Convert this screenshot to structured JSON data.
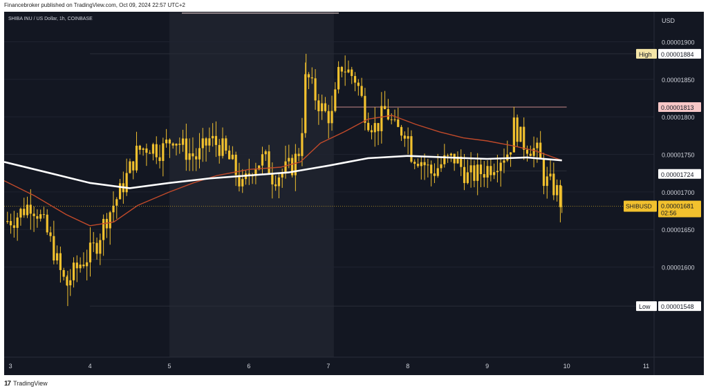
{
  "header": {
    "published": "Financebroker published on TradingView.com, Oct 09, 2024 22:57 UTC+2"
  },
  "footer": {
    "brand": "TradingView"
  },
  "chart_data": {
    "type": "candlestick",
    "title": "SHIBA INU / US Dollar, 1h, COINBASE",
    "symbol": "SHIBUSD",
    "currency": "USD",
    "ylim": [
      1.48e-05,
      1.94e-05
    ],
    "y_ticks": [
      "0.00001900",
      "0.00001850",
      "0.00001800",
      "0.00001750",
      "0.00001700",
      "0.00001650",
      "0.00001600"
    ],
    "x_ticks": [
      "3",
      "4",
      "5",
      "6",
      "7",
      "8",
      "9",
      "10",
      "11"
    ],
    "x_range": [
      2.92,
      11.1
    ],
    "weekend_shade": [
      5.0,
      7.07
    ],
    "labels": {
      "high": {
        "tag": "High",
        "value": "0.00001884",
        "num": 1.884e-05
      },
      "low": {
        "tag": "Low",
        "value": "0.00001548",
        "num": 1.548e-05
      },
      "level_1813": {
        "value": "0.00001813",
        "num": 1.813e-05
      },
      "level_1724": {
        "value": "0.00001724",
        "num": 1.724e-05
      },
      "current": {
        "symbol": "SHIBUSD",
        "value": "0.00001681",
        "num": 1.681e-05,
        "countdown": "02:56"
      }
    },
    "candle_colors": {
      "body": "#f2c12e",
      "wick": "#f2c12e"
    },
    "ma_colors": {
      "ma200": "#ffffff",
      "ma50": "#c24a2a"
    },
    "close_path": [
      [
        2.92,
        1.66e-05
      ],
      [
        3.05,
        1.665e-05
      ],
      [
        3.15,
        1.675e-05
      ],
      [
        3.25,
        1.685e-05
      ],
      [
        3.35,
        1.672e-05
      ],
      [
        3.45,
        1.648e-05
      ],
      [
        3.55,
        1.62e-05
      ],
      [
        3.62,
        1.595e-05
      ],
      [
        3.7,
        1.575e-05
      ],
      [
        3.78,
        1.59e-05
      ],
      [
        3.88,
        1.605e-05
      ],
      [
        3.98,
        1.615e-05
      ],
      [
        4.08,
        1.63e-05
      ],
      [
        4.18,
        1.66e-05
      ],
      [
        4.28,
        1.68e-05
      ],
      [
        4.38,
        1.7e-05
      ],
      [
        4.5,
        1.73e-05
      ],
      [
        4.6,
        1.755e-05
      ],
      [
        4.75,
        1.762e-05
      ],
      [
        4.9,
        1.755e-05
      ],
      [
        5.05,
        1.775e-05
      ],
      [
        5.2,
        1.755e-05
      ],
      [
        5.35,
        1.745e-05
      ],
      [
        5.5,
        1.77e-05
      ],
      [
        5.65,
        1.76e-05
      ],
      [
        5.8,
        1.735e-05
      ],
      [
        5.92,
        1.705e-05
      ],
      [
        6.05,
        1.735e-05
      ],
      [
        6.2,
        1.745e-05
      ],
      [
        6.3,
        1.72e-05
      ],
      [
        6.4,
        1.725e-05
      ],
      [
        6.55,
        1.735e-05
      ],
      [
        6.65,
        1.76e-05
      ],
      [
        6.72,
        1.86e-05
      ],
      [
        6.82,
        1.83e-05
      ],
      [
        6.95,
        1.805e-05
      ],
      [
        7.05,
        1.8e-05
      ],
      [
        7.15,
        1.87e-05
      ],
      [
        7.25,
        1.86e-05
      ],
      [
        7.35,
        1.85e-05
      ],
      [
        7.48,
        1.8e-05
      ],
      [
        7.6,
        1.785e-05
      ],
      [
        7.72,
        1.81e-05
      ],
      [
        7.85,
        1.78e-05
      ],
      [
        7.98,
        1.785e-05
      ],
      [
        8.05,
        1.75e-05
      ],
      [
        8.15,
        1.745e-05
      ],
      [
        8.3,
        1.725e-05
      ],
      [
        8.45,
        1.74e-05
      ],
      [
        8.6,
        1.745e-05
      ],
      [
        8.75,
        1.72e-05
      ],
      [
        8.9,
        1.725e-05
      ],
      [
        9.05,
        1.735e-05
      ],
      [
        9.15,
        1.745e-05
      ],
      [
        9.28,
        1.755e-05
      ],
      [
        9.34,
        1.79e-05
      ],
      [
        9.45,
        1.765e-05
      ],
      [
        9.55,
        1.76e-05
      ],
      [
        9.65,
        1.75e-05
      ],
      [
        9.72,
        1.715e-05
      ],
      [
        9.8,
        1.71e-05
      ],
      [
        9.88,
        1.7e-05
      ],
      [
        9.94,
        1.681e-05
      ]
    ],
    "ma200_path": [
      [
        2.92,
        1.74e-05
      ],
      [
        3.5,
        1.725e-05
      ],
      [
        4.0,
        1.712e-05
      ],
      [
        4.5,
        1.705e-05
      ],
      [
        5.0,
        1.712e-05
      ],
      [
        5.5,
        1.718e-05
      ],
      [
        6.0,
        1.722e-05
      ],
      [
        6.5,
        1.726e-05
      ],
      [
        7.0,
        1.735e-05
      ],
      [
        7.5,
        1.745e-05
      ],
      [
        8.0,
        1.748e-05
      ],
      [
        8.5,
        1.746e-05
      ],
      [
        9.0,
        1.744e-05
      ],
      [
        9.5,
        1.746e-05
      ],
      [
        9.94,
        1.742e-05
      ]
    ],
    "ma50_path": [
      [
        2.92,
        1.715e-05
      ],
      [
        3.3,
        1.695e-05
      ],
      [
        3.7,
        1.67e-05
      ],
      [
        4.0,
        1.655e-05
      ],
      [
        4.3,
        1.66e-05
      ],
      [
        4.6,
        1.682e-05
      ],
      [
        5.0,
        1.7e-05
      ],
      [
        5.3,
        1.712e-05
      ],
      [
        5.6,
        1.722e-05
      ],
      [
        6.0,
        1.73e-05
      ],
      [
        6.4,
        1.733e-05
      ],
      [
        6.65,
        1.74e-05
      ],
      [
        6.9,
        1.765e-05
      ],
      [
        7.2,
        1.78e-05
      ],
      [
        7.5,
        1.797e-05
      ],
      [
        7.8,
        1.802e-05
      ],
      [
        8.1,
        1.79e-05
      ],
      [
        8.4,
        1.78e-05
      ],
      [
        8.7,
        1.772e-05
      ],
      [
        9.0,
        1.768e-05
      ],
      [
        9.3,
        1.762e-05
      ],
      [
        9.6,
        1.755e-05
      ],
      [
        9.94,
        1.742e-05
      ]
    ]
  }
}
